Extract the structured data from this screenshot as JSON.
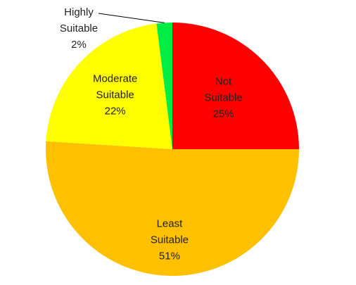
{
  "chart_data": {
    "type": "pie",
    "categories": [
      "Not Suitable",
      "Least Suitable",
      "Moderate Suitable",
      "Highly Suitable"
    ],
    "values": [
      25,
      51,
      22,
      2
    ],
    "value_labels": [
      "25%",
      "51%",
      "22%",
      "2%"
    ],
    "colors": [
      "#ff0000",
      "#ffc000",
      "#ffff00",
      "#00ee44"
    ]
  }
}
